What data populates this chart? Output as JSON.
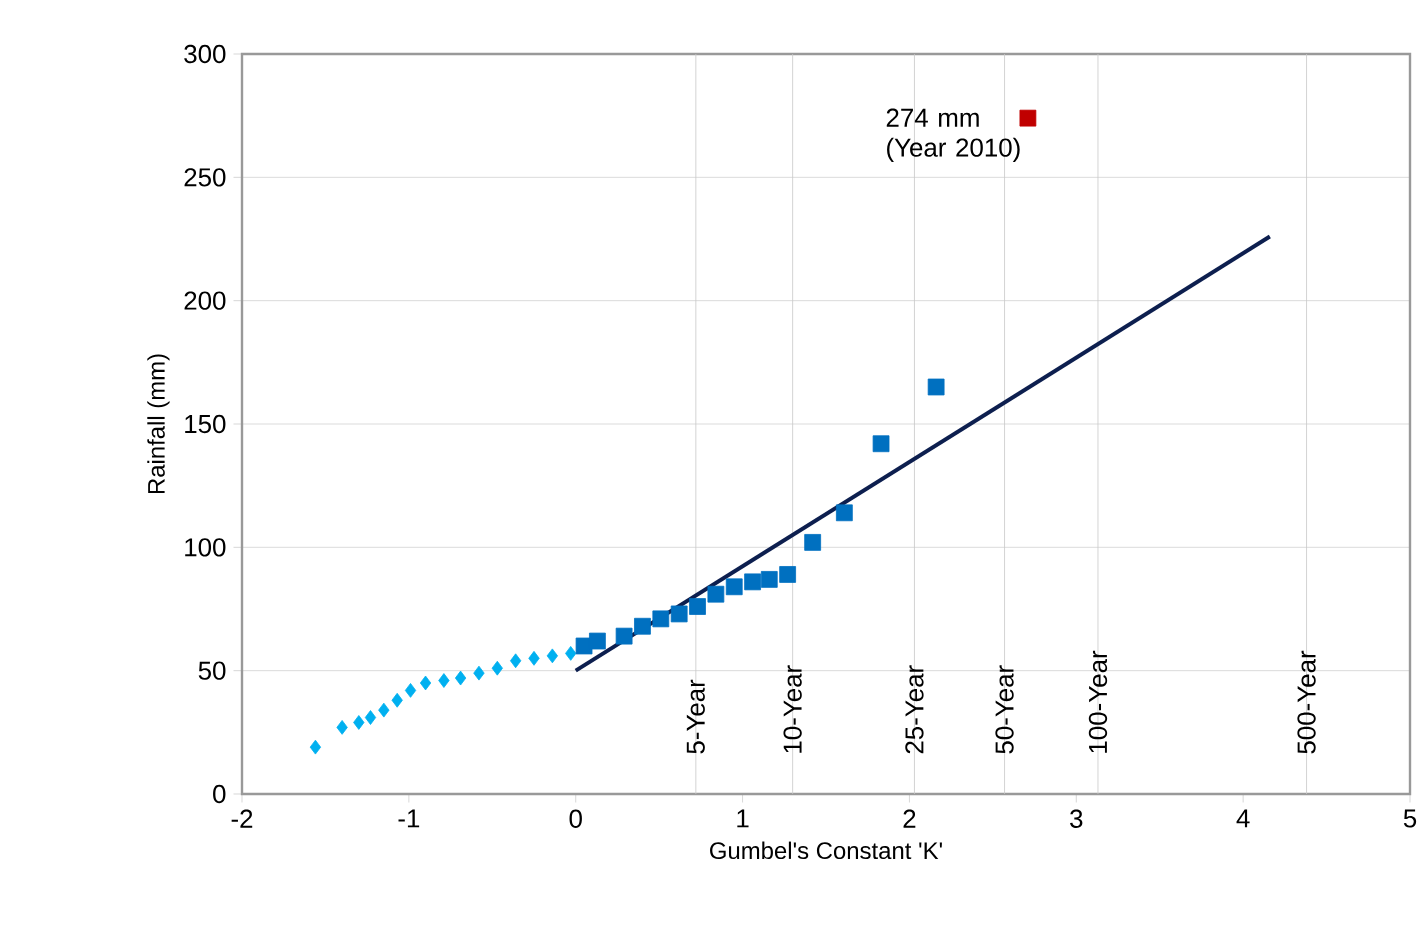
{
  "chart_data": {
    "type": "scatter",
    "xlabel": "Gumbel's Constant 'K'",
    "ylabel": "Rainfall (mm)",
    "xlim": [
      -2,
      5
    ],
    "ylim": [
      0,
      300
    ],
    "xticks": [
      -2,
      -1,
      0,
      1,
      2,
      3,
      4,
      5
    ],
    "yticks": [
      0,
      50,
      100,
      150,
      200,
      250,
      300
    ],
    "grid": "y",
    "series": [
      {
        "marker": "diamond",
        "color": "#00b0f0",
        "x": [
          -1.56,
          -1.4,
          -1.3,
          -1.23,
          -1.15,
          -1.07,
          -0.99,
          -0.9,
          -0.79,
          -0.69,
          -0.58,
          -0.47,
          -0.36,
          -0.25,
          -0.14,
          -0.03
        ],
        "values": [
          19,
          27,
          29,
          31,
          34,
          38,
          42,
          45,
          46,
          47,
          49,
          51,
          54,
          55,
          56,
          57
        ]
      },
      {
        "marker": "square",
        "color": "#0070c0",
        "x": [
          0.05,
          0.13,
          0.29,
          0.4,
          0.51,
          0.62,
          0.73,
          0.84,
          0.95,
          1.06,
          1.16,
          1.27,
          1.42,
          1.61,
          1.83,
          2.16
        ],
        "values": [
          60,
          62,
          64,
          68,
          71,
          73,
          76,
          81,
          84,
          86,
          87,
          89,
          102,
          114,
          142,
          165
        ]
      },
      {
        "marker": "square",
        "color": "#c00000",
        "x": [
          2.71
        ],
        "values": [
          274
        ]
      },
      {
        "type": "line",
        "marker": "none",
        "color": "#0d1f4f",
        "x": [
          0,
          4.16
        ],
        "values": [
          50,
          226
        ]
      }
    ],
    "ref_lines": [
      {
        "axis": "x",
        "value": 0.72,
        "label": "5-Year"
      },
      {
        "axis": "x",
        "value": 1.3,
        "label": "10-Year"
      },
      {
        "axis": "x",
        "value": 2.03,
        "label": "25-Year"
      },
      {
        "axis": "x",
        "value": 2.57,
        "label": "50-Year"
      },
      {
        "axis": "x",
        "value": 3.13,
        "label": "100-Year"
      },
      {
        "axis": "x",
        "value": 4.38,
        "label": "500-Year"
      }
    ],
    "annotations": [
      {
        "text": "274 mm (Year 2010)",
        "x": 2.71,
        "y": 274
      }
    ]
  }
}
